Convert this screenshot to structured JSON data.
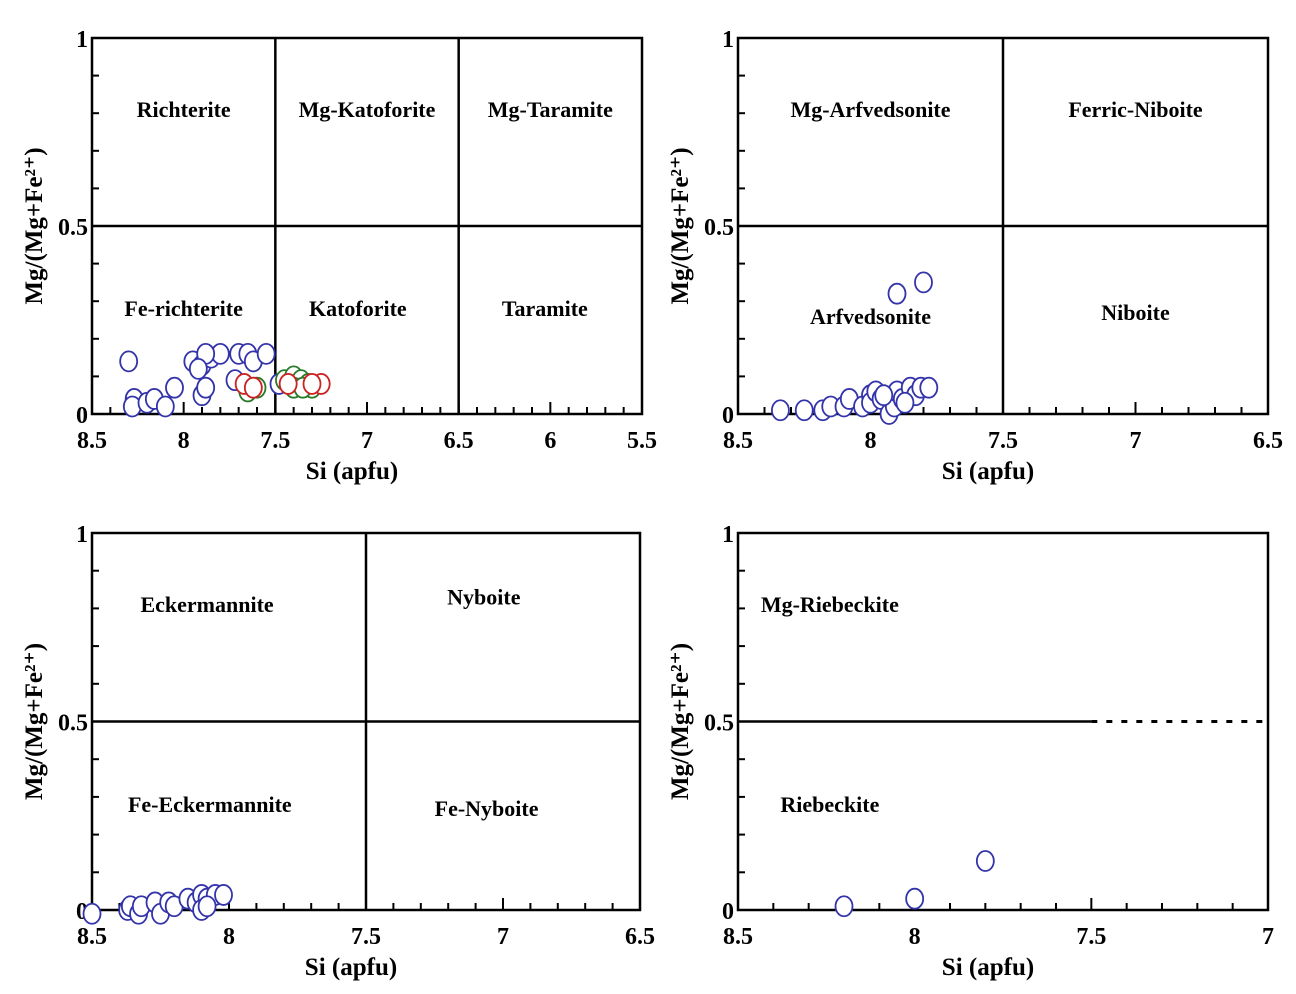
{
  "chart_data": [
    {
      "type": "scatter",
      "xlabel": "Si (apfu)",
      "ylabel": "Mg/(Mg+Fe²⁺)",
      "xlim": [
        8.5,
        5.5
      ],
      "ylim": [
        0,
        1
      ],
      "xticks": [
        "8.5",
        "8",
        "7.5",
        "7",
        "6.5",
        "6",
        "5.5"
      ],
      "yticks": [
        "0",
        "0.5",
        "1"
      ],
      "dividers": {
        "vertical": [
          7.5,
          6.5
        ],
        "horizontal": [
          0.5
        ]
      },
      "regions": [
        {
          "label": "Richterite",
          "x": 8.0,
          "y": 0.79
        },
        {
          "label": "Mg-Katoforite",
          "x": 7.0,
          "y": 0.79
        },
        {
          "label": "Mg-Taramite",
          "x": 6.0,
          "y": 0.79
        },
        {
          "label": "Fe-richterite",
          "x": 8.0,
          "y": 0.26
        },
        {
          "label": "Katoforite",
          "x": 7.05,
          "y": 0.26
        },
        {
          "label": "Taramite",
          "x": 6.03,
          "y": 0.26
        }
      ],
      "series": [
        {
          "color": "#3333aa",
          "points": [
            [
              8.3,
              0.14
            ],
            [
              8.27,
              0.04
            ],
            [
              8.28,
              0.02
            ],
            [
              8.2,
              0.03
            ],
            [
              8.16,
              0.04
            ],
            [
              8.1,
              0.02
            ],
            [
              8.05,
              0.07
            ],
            [
              7.95,
              0.14
            ],
            [
              7.9,
              0.13
            ],
            [
              7.9,
              0.05
            ],
            [
              7.88,
              0.07
            ],
            [
              7.85,
              0.15
            ],
            [
              7.8,
              0.16
            ],
            [
              7.72,
              0.09
            ],
            [
              7.7,
              0.16
            ],
            [
              7.65,
              0.16
            ],
            [
              7.62,
              0.14
            ],
            [
              7.55,
              0.16
            ],
            [
              7.48,
              0.08
            ],
            [
              7.88,
              0.16
            ],
            [
              7.92,
              0.12
            ]
          ]
        },
        {
          "color": "#2a7a2a",
          "points": [
            [
              7.65,
              0.06
            ],
            [
              7.6,
              0.07
            ],
            [
              7.45,
              0.09
            ],
            [
              7.4,
              0.1
            ],
            [
              7.36,
              0.09
            ],
            [
              7.32,
              0.08
            ],
            [
              7.3,
              0.07
            ],
            [
              7.4,
              0.07
            ],
            [
              7.35,
              0.07
            ]
          ]
        },
        {
          "color": "#cc2222",
          "points": [
            [
              7.67,
              0.08
            ],
            [
              7.62,
              0.07
            ],
            [
              7.25,
              0.08
            ],
            [
              7.3,
              0.08
            ],
            [
              7.43,
              0.08
            ]
          ]
        }
      ]
    },
    {
      "type": "scatter",
      "xlabel": "Si (apfu)",
      "ylabel": "Mg/(Mg+Fe²⁺)",
      "xlim": [
        8.5,
        6.5
      ],
      "ylim": [
        0,
        1
      ],
      "xticks": [
        "8.5",
        "8",
        "7.5",
        "7",
        "6.5"
      ],
      "yticks": [
        "0",
        "0.5",
        "1"
      ],
      "dividers": {
        "vertical": [
          7.5
        ],
        "horizontal": [
          0.5
        ]
      },
      "regions": [
        {
          "label": "Mg-Arfvedsonite",
          "x": 8.0,
          "y": 0.79
        },
        {
          "label": "Ferric-Niboite",
          "x": 7.0,
          "y": 0.79
        },
        {
          "label": "Arfvedsonite",
          "x": 8.0,
          "y": 0.24
        },
        {
          "label": "Niboite",
          "x": 7.0,
          "y": 0.25
        }
      ],
      "series": [
        {
          "color": "#3333aa",
          "points": [
            [
              8.34,
              0.01
            ],
            [
              8.25,
              0.01
            ],
            [
              8.18,
              0.01
            ],
            [
              8.15,
              0.02
            ],
            [
              8.1,
              0.02
            ],
            [
              8.08,
              0.04
            ],
            [
              8.03,
              0.02
            ],
            [
              8.0,
              0.05
            ],
            [
              8.0,
              0.03
            ],
            [
              7.98,
              0.06
            ],
            [
              7.96,
              0.04
            ],
            [
              7.93,
              0.0
            ],
            [
              7.91,
              0.02
            ],
            [
              7.9,
              0.06
            ],
            [
              7.88,
              0.04
            ],
            [
              7.85,
              0.07
            ],
            [
              7.83,
              0.05
            ],
            [
              7.81,
              0.07
            ],
            [
              7.78,
              0.07
            ],
            [
              7.8,
              0.35
            ],
            [
              7.9,
              0.32
            ],
            [
              7.95,
              0.05
            ],
            [
              7.87,
              0.03
            ]
          ]
        }
      ]
    },
    {
      "type": "scatter",
      "xlabel": "Si (apfu)",
      "ylabel": "Mg/(Mg+Fe²⁺)",
      "xlim": [
        8.5,
        6.5
      ],
      "ylim": [
        0,
        1
      ],
      "xticks": [
        "8.5",
        "8",
        "7.5",
        "7",
        "6.5"
      ],
      "yticks": [
        "0",
        "0.5",
        "1"
      ],
      "dividers": {
        "vertical": [
          7.5
        ],
        "horizontal": [
          0.5
        ]
      },
      "regions": [
        {
          "label": "Eckermannite",
          "x": 8.08,
          "y": 0.79
        },
        {
          "label": "Nyboite",
          "x": 7.07,
          "y": 0.81
        },
        {
          "label": "Fe-Eckermannite",
          "x": 8.07,
          "y": 0.26
        },
        {
          "label": "Fe-Nyboite",
          "x": 7.06,
          "y": 0.25
        }
      ],
      "series": [
        {
          "color": "#3333aa",
          "points": [
            [
              8.5,
              -0.01
            ],
            [
              8.37,
              0.0
            ],
            [
              8.36,
              0.01
            ],
            [
              8.33,
              -0.01
            ],
            [
              8.32,
              0.01
            ],
            [
              8.27,
              0.02
            ],
            [
              8.25,
              -0.01
            ],
            [
              8.22,
              0.02
            ],
            [
              8.2,
              0.01
            ],
            [
              8.15,
              0.03
            ],
            [
              8.12,
              0.02
            ],
            [
              8.1,
              0.04
            ],
            [
              8.08,
              0.03
            ],
            [
              8.05,
              0.04
            ],
            [
              8.02,
              0.04
            ],
            [
              8.1,
              0.0
            ],
            [
              8.08,
              0.01
            ]
          ]
        }
      ]
    },
    {
      "type": "scatter",
      "xlabel": "Si (apfu)",
      "ylabel": "Mg/(Mg+Fe²⁺)",
      "xlim": [
        8.5,
        7
      ],
      "ylim": [
        0,
        1
      ],
      "xticks": [
        "8.5",
        "8",
        "7.5",
        "7"
      ],
      "yticks": [
        "0",
        "0.5",
        "1"
      ],
      "dividers": {
        "vertical": [],
        "horizontal": [
          0.5
        ],
        "dashed_from": 7.5
      },
      "regions": [
        {
          "label": "Mg-Riebeckite",
          "x": 8.24,
          "y": 0.79
        },
        {
          "label": "Riebeckite",
          "x": 8.24,
          "y": 0.26
        }
      ],
      "series": [
        {
          "color": "#3333aa",
          "points": [
            [
              8.2,
              0.01
            ],
            [
              8.0,
              0.03
            ],
            [
              7.8,
              0.13
            ]
          ]
        }
      ]
    }
  ]
}
